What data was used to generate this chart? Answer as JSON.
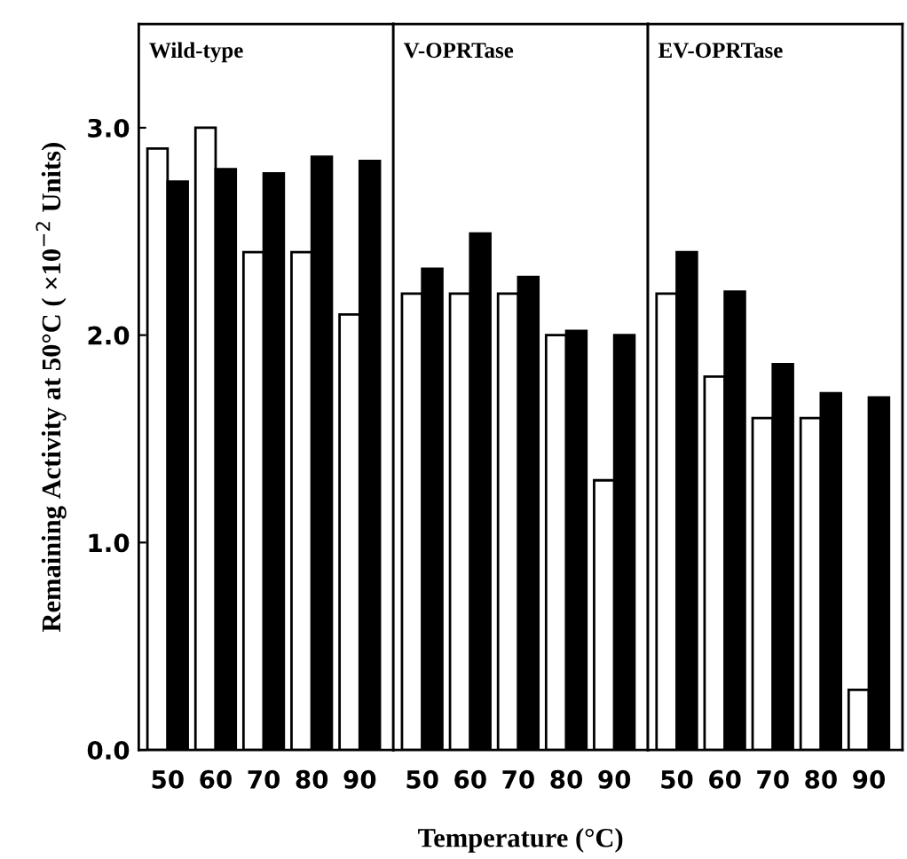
{
  "chart_data": [
    {
      "type": "bar",
      "title": "Wild-type",
      "ylabel": "Remaining Activity at 50°C ( ×10$^{−2}$ Units)",
      "categories": [
        "50",
        "60",
        "70",
        "80",
        "90"
      ],
      "ylim": [
        0,
        3.5
      ],
      "yticks": [
        {
          "value": 0,
          "label": "0.0"
        },
        {
          "value": 1,
          "label": "1.0"
        },
        {
          "value": 2,
          "label": "2.0"
        },
        {
          "value": 3,
          "label": "3.0"
        }
      ],
      "series": [
        {
          "color": "#ffffff",
          "values": [
            2.9,
            3.0,
            2.4,
            2.4,
            2.1
          ]
        },
        {
          "color": "#000000",
          "values": [
            2.74,
            2.8,
            2.78,
            2.86,
            2.84
          ]
        }
      ]
    },
    {
      "type": "bar",
      "title": "V-OPRTase",
      "xlabel": "Temperature (°C)",
      "categories": [
        "50",
        "60",
        "70",
        "80",
        "90"
      ],
      "ylim": [
        0,
        3.5
      ],
      "tick_labels": "x",
      "series": [
        {
          "color": "#ffffff",
          "values": [
            2.2,
            2.2,
            2.2,
            2.0,
            1.3
          ]
        },
        {
          "color": "#000000",
          "values": [
            2.32,
            2.49,
            2.28,
            2.02,
            2.0
          ]
        }
      ]
    },
    {
      "type": "bar",
      "title": "EV-OPRTase",
      "categories": [
        "50",
        "60",
        "70",
        "80",
        "90"
      ],
      "ylim": [
        0,
        3.5
      ],
      "tick_labels": "x",
      "series": [
        {
          "color": "#ffffff",
          "values": [
            2.2,
            1.8,
            1.6,
            1.6,
            0.29
          ]
        },
        {
          "color": "#000000",
          "values": [
            2.4,
            2.21,
            1.86,
            1.72,
            1.7
          ]
        }
      ]
    }
  ]
}
